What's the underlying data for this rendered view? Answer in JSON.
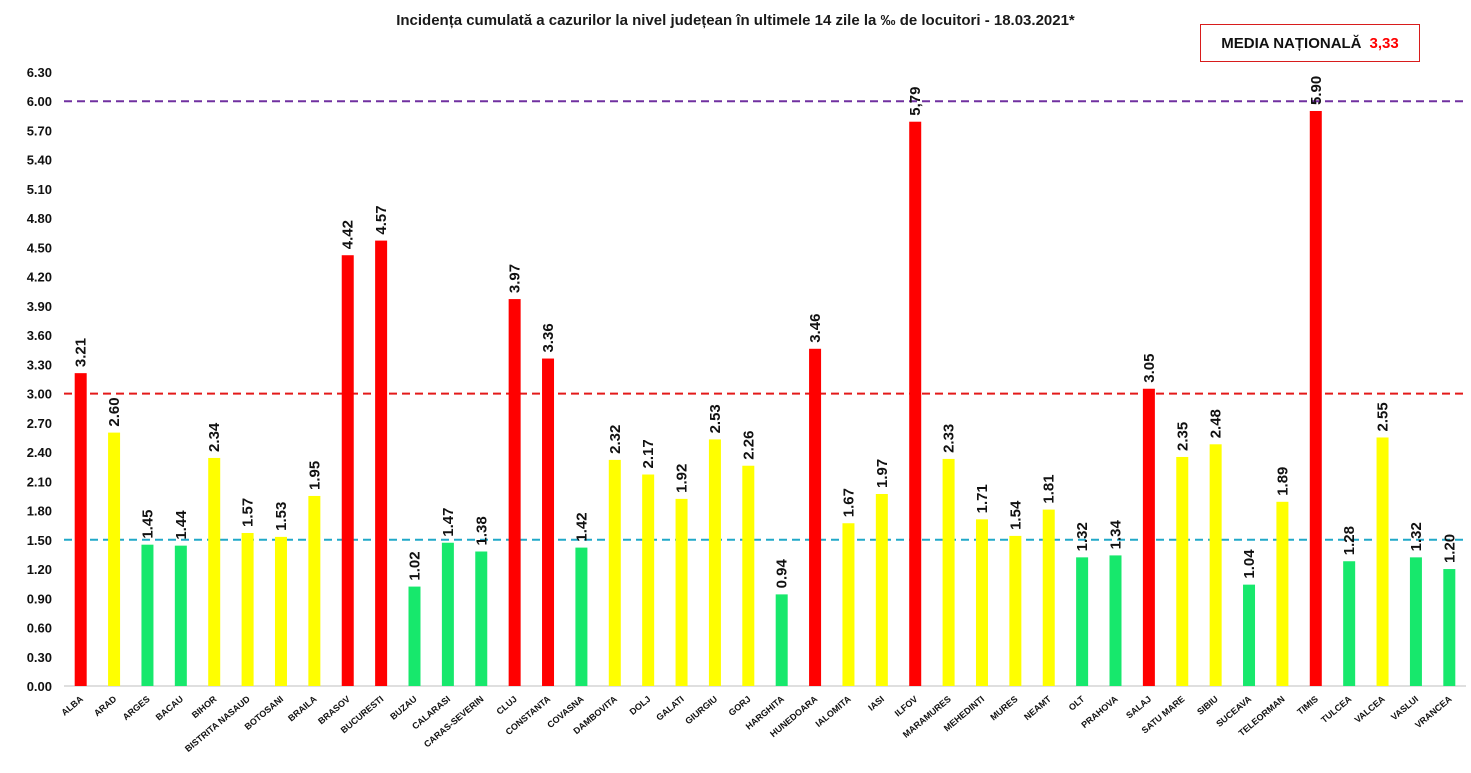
{
  "chart_data": {
    "type": "bar",
    "title": "Incidența cumulată a cazurilor la nivel județean în ultimele 14 zile la ‰ de locuitori - 18.03.2021*",
    "xlabel": "",
    "ylabel": "",
    "ylim": [
      0,
      6.3
    ],
    "yticks": [
      "0.00",
      "0.30",
      "0.60",
      "0.90",
      "1.20",
      "1.50",
      "1.80",
      "2.10",
      "2.40",
      "2.70",
      "3.00",
      "3.30",
      "3.60",
      "3.90",
      "4.20",
      "4.50",
      "4.80",
      "5.10",
      "5.40",
      "5.70",
      "6.00",
      "6.30"
    ],
    "grid": false,
    "categories": [
      "ALBA",
      "ARAD",
      "ARGES",
      "BACAU",
      "BIHOR",
      "BISTRITA NASAUD",
      "BOTOSANI",
      "BRAILA",
      "BRASOV",
      "BUCURESTI",
      "BUZAU",
      "CALARASI",
      "CARAS-SEVERIN",
      "CLUJ",
      "CONSTANTA",
      "COVASNA",
      "DAMBOVITA",
      "DOLJ",
      "GALATI",
      "GIURGIU",
      "GORJ",
      "HARGHITA",
      "HUNEDOARA",
      "IALOMITA",
      "IASI",
      "ILFOV",
      "MARAMURES",
      "MEHEDINTI",
      "MURES",
      "NEAMT",
      "OLT",
      "PRAHOVA",
      "SALAJ",
      "SATU MARE",
      "SIBIU",
      "SUCEAVA",
      "TELEORMAN",
      "TIMIS",
      "TULCEA",
      "VALCEA",
      "VASLUI",
      "VRANCEA"
    ],
    "values": [
      3.21,
      2.6,
      1.45,
      1.44,
      2.34,
      1.57,
      1.53,
      1.95,
      4.42,
      4.57,
      1.02,
      1.47,
      1.38,
      3.97,
      3.36,
      1.42,
      2.32,
      2.17,
      1.92,
      2.53,
      2.26,
      0.94,
      3.46,
      1.67,
      1.97,
      5.79,
      2.33,
      1.71,
      1.54,
      1.81,
      1.32,
      1.34,
      3.05,
      2.35,
      2.48,
      1.04,
      1.89,
      5.9,
      1.28,
      2.55,
      1.32,
      1.2
    ],
    "value_labels": [
      "3.21",
      "2.60",
      "1.45",
      "1.44",
      "2.34",
      "1.57",
      "1.53",
      "1.95",
      "4.42",
      "4.57",
      "1.02",
      "1.47",
      "1.38",
      "3.97",
      "3.36",
      "1.42",
      "2.32",
      "2.17",
      "1.92",
      "2.53",
      "2.26",
      "0.94",
      "3.46",
      "1.67",
      "1.97",
      "5,79",
      "2.33",
      "1.71",
      "1.54",
      "1.81",
      "1.32",
      "1.34",
      "3.05",
      "2.35",
      "2.48",
      "1.04",
      "1.89",
      "5.90",
      "1.28",
      "2.55",
      "1.32",
      "1.20"
    ],
    "thresholds": [
      {
        "value": 6.0,
        "color": "#7030a0",
        "style": "dashed"
      },
      {
        "value": 3.0,
        "color": "#e31a1a",
        "style": "dashed"
      },
      {
        "value": 1.5,
        "color": "#21a8c8",
        "style": "dashed"
      }
    ],
    "color_rule": [
      {
        "max": 1.5,
        "color": "#17e86c"
      },
      {
        "max": 3.0,
        "color": "#ffff00"
      },
      {
        "max": 99,
        "color": "#ff0000"
      }
    ],
    "annotation": {
      "label": "MEDIA NAȚIONALĂ",
      "value": "3,33"
    }
  }
}
